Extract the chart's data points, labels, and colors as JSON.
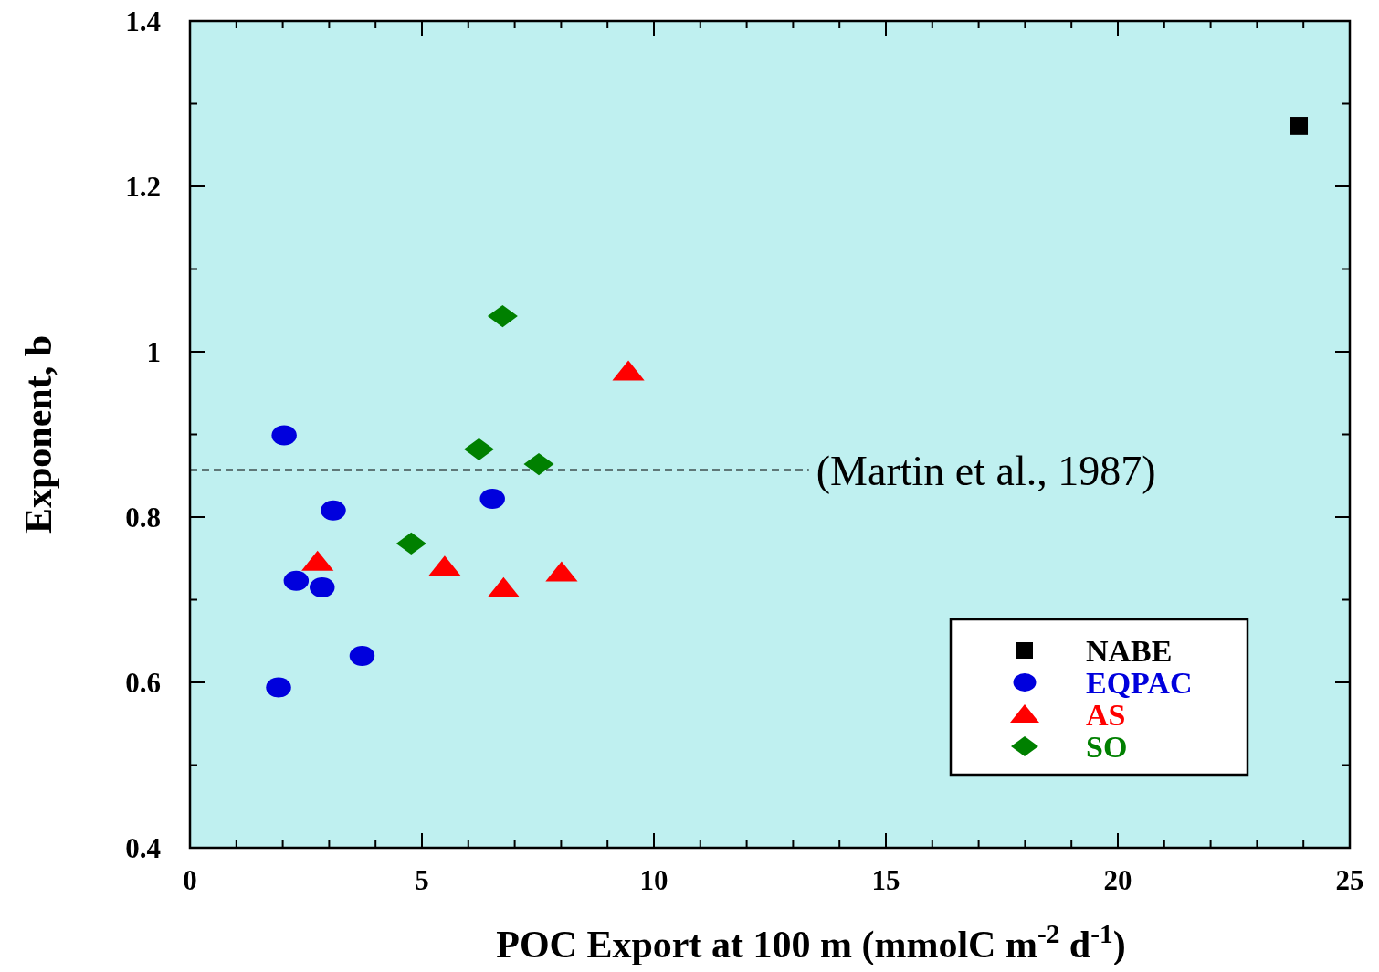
{
  "chart_data": {
    "type": "scatter",
    "xlabel": "POC Export at 100 m  (mmolC m$^{-2}$ d$^{-1}$)",
    "ylabel": "Exponent, b",
    "xlim": [
      0,
      25
    ],
    "ylim": [
      0.4,
      1.4
    ],
    "xticks": [
      0,
      {
        "value": 1,
        "label": null
      },
      {
        "value": 2,
        "label": null
      },
      {
        "value": 3,
        "label": null
      },
      {
        "value": 4,
        "label": null
      },
      5,
      {
        "value": 6,
        "label": null
      },
      {
        "value": 7,
        "label": null
      },
      {
        "value": 8,
        "label": null
      },
      {
        "value": 9,
        "label": null
      },
      10,
      {
        "value": 11,
        "label": null
      },
      {
        "value": 12,
        "label": null
      },
      {
        "value": 13,
        "label": null
      },
      {
        "value": 14,
        "label": null
      },
      15,
      {
        "value": 16,
        "label": null
      },
      {
        "value": 17,
        "label": null
      },
      {
        "value": 18,
        "label": null
      },
      {
        "value": 19,
        "label": null
      },
      20,
      {
        "value": 21,
        "label": null
      },
      {
        "value": 22,
        "label": null
      },
      {
        "value": 23,
        "label": null
      },
      {
        "value": 24,
        "label": null
      },
      25
    ],
    "yticks": [
      0.4,
      {
        "value": 0.5,
        "label": null
      },
      0.6,
      {
        "value": 0.7,
        "label": null
      },
      0.8,
      {
        "value": 0.9,
        "label": null
      },
      1,
      {
        "value": 1.1,
        "label": null
      },
      1.2,
      {
        "value": 1.3,
        "label": null
      },
      1.4
    ],
    "legend": "bottom right",
    "grid": false,
    "ref_lines": [
      {
        "axis": "y",
        "value": 0.857,
        "label": "(Martin et al., 1987)",
        "line_style": "dashed",
        "color": "#000000"
      }
    ],
    "series": [
      {
        "name": "NABE",
        "color": "#000000",
        "marker": "square",
        "x": [
          23.9
        ],
        "values": [
          1.273
        ]
      },
      {
        "name": "EQPAC",
        "color": "#0000dd",
        "marker": "circle",
        "x": [
          2.03,
          3.09,
          6.52,
          2.29,
          2.85,
          3.71,
          1.91
        ],
        "values": [
          0.899,
          0.808,
          0.822,
          0.723,
          0.715,
          0.632,
          0.594
        ]
      },
      {
        "name": "AS",
        "color": "#ff0000",
        "marker": "triangle",
        "x": [
          2.75,
          5.49,
          6.76,
          8.01,
          9.45
        ],
        "values": [
          0.746,
          0.74,
          0.714,
          0.733,
          0.976
        ]
      },
      {
        "name": "SO",
        "color": "#008000",
        "marker": "diamond",
        "x": [
          6.74,
          6.23,
          7.52,
          4.77
        ],
        "values": [
          1.043,
          0.882,
          0.864,
          0.768
        ]
      }
    ]
  }
}
